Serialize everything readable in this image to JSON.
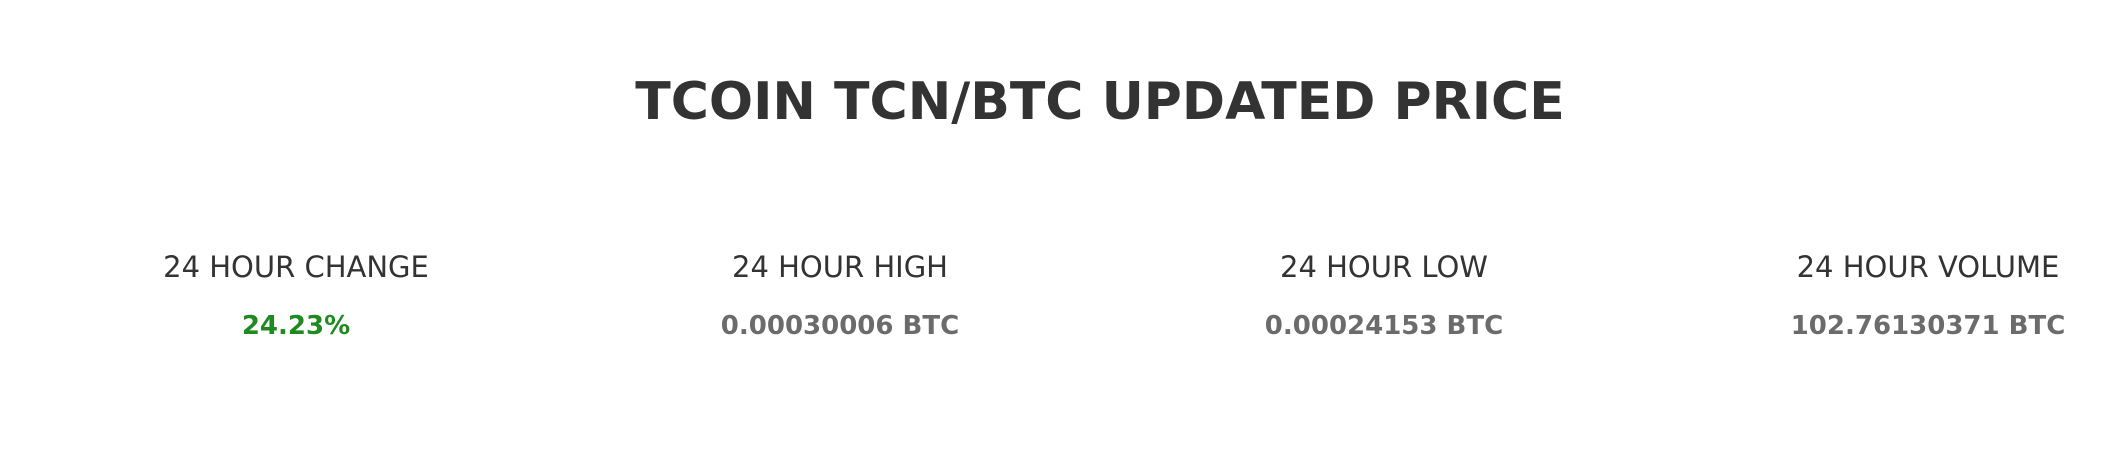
{
  "header": {
    "title": "TCOIN TCN/BTC UPDATED PRICE"
  },
  "stats": {
    "change": {
      "label": "24 HOUR CHANGE",
      "value": "24.23%"
    },
    "high": {
      "label": "24 HOUR HIGH",
      "value": "0.00030006 BTC"
    },
    "low": {
      "label": "24 HOUR LOW",
      "value": "0.00024153 BTC"
    },
    "volume": {
      "label": "24 HOUR VOLUME",
      "value": "102.76130371 BTC"
    }
  },
  "colors": {
    "title": "#333333",
    "label": "#333333",
    "value": "#6b6b6b",
    "positive_change": "#1f8a1f",
    "background": "#ffffff"
  }
}
